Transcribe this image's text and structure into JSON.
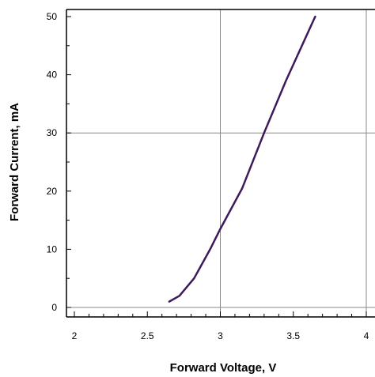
{
  "chart_data": {
    "type": "line",
    "title": "",
    "xlabel": "Forward Voltage, V",
    "ylabel": "Forward Current, mA",
    "xlim": [
      2,
      4
    ],
    "ylim": [
      0,
      50
    ],
    "x_ticks": [
      2,
      2.5,
      3,
      3.5,
      4
    ],
    "x_tick_labels": [
      "2",
      "2.5",
      "3",
      "3.5",
      "4"
    ],
    "y_ticks": [
      0,
      10,
      20,
      30,
      40,
      50
    ],
    "y_tick_labels": [
      "0",
      "10",
      "20",
      "30",
      "40",
      "50"
    ],
    "grid": {
      "x": [
        3,
        4
      ],
      "y": [
        0,
        30
      ]
    },
    "series": [
      {
        "color": "#3d1a5b",
        "x": [
          2.65,
          2.72,
          2.82,
          2.93,
          3.0,
          3.15,
          3.3,
          3.45,
          3.65
        ],
        "y": [
          1,
          2,
          5,
          10,
          13.5,
          20.5,
          30,
          39,
          50
        ]
      }
    ]
  }
}
